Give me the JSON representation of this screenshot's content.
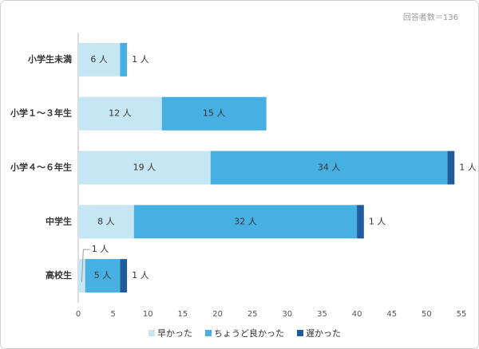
{
  "chart_data": {
    "type": "stacked-barh",
    "annotation": "回答者数＝136",
    "categories": [
      "小学生未満",
      "小学１～３年生",
      "小学４～６年生",
      "中学生",
      "高校生"
    ],
    "series": [
      {
        "name": "早かった",
        "color": "#c6e6f4",
        "values": [
          6,
          12,
          19,
          8,
          1
        ],
        "value_labels": [
          "6 人",
          "12 人",
          "19 人",
          "8 人",
          "1 人"
        ]
      },
      {
        "name": "ちょうど良かった",
        "color": "#47b0e3",
        "values": [
          1,
          15,
          34,
          32,
          5
        ],
        "value_labels": [
          "1 人",
          "15 人",
          "34 人",
          "32 人",
          "5 人"
        ]
      },
      {
        "name": "遅かった",
        "color": "#1f5c9c",
        "values": [
          null,
          null,
          1,
          1,
          1
        ],
        "value_labels": [
          null,
          null,
          "1 人",
          "1 人",
          "1 人"
        ]
      }
    ],
    "xlim": [
      0,
      55
    ],
    "xticks": [
      0,
      5,
      10,
      15,
      20,
      25,
      30,
      35,
      40,
      45,
      50,
      55
    ],
    "legend": "bottom"
  }
}
